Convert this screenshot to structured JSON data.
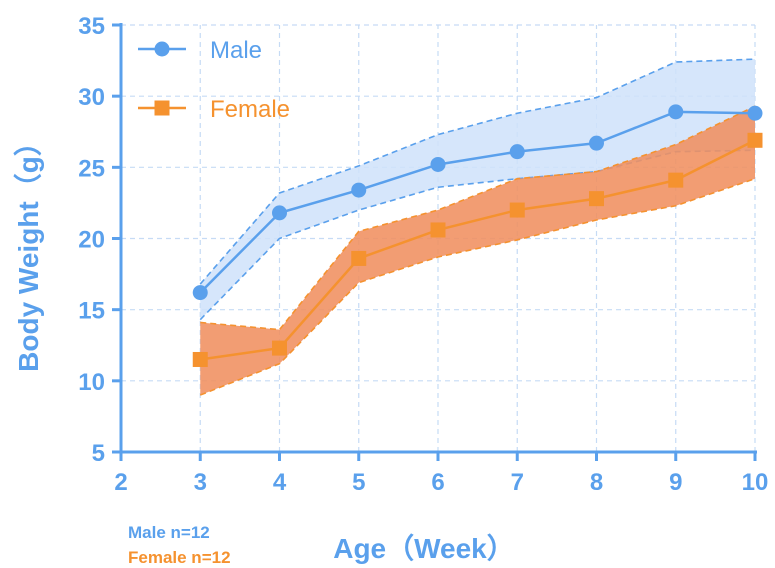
{
  "chart_data": {
    "type": "line",
    "xlabel": "Age（Week）",
    "ylabel": "Body Weight（g）",
    "xlim": [
      2,
      10
    ],
    "ylim": [
      5,
      35
    ],
    "xticks": [
      2,
      3,
      4,
      5,
      6,
      7,
      8,
      9,
      10
    ],
    "yticks": [
      5,
      10,
      15,
      20,
      25,
      30,
      35
    ],
    "grid": true,
    "legend_position": "top-left",
    "x": [
      3,
      4,
      5,
      6,
      7,
      8,
      9,
      10
    ],
    "series": [
      {
        "name": "Male",
        "marker": "circle",
        "color": "#5aa0ec",
        "band_color": "#cfe2fa",
        "values": [
          16.2,
          21.8,
          23.4,
          25.2,
          26.1,
          26.7,
          28.9,
          28.8
        ],
        "upper": [
          16.8,
          23.2,
          25.1,
          27.3,
          28.8,
          29.9,
          32.4,
          32.6
        ],
        "lower": [
          14.3,
          20.0,
          22.0,
          23.6,
          24.2,
          24.7,
          26.1,
          26.2
        ]
      },
      {
        "name": "Female",
        "marker": "square",
        "color": "#f5922f",
        "band_color": "#f09060",
        "values": [
          11.5,
          12.3,
          18.6,
          20.6,
          22.0,
          22.8,
          24.1,
          26.9
        ],
        "upper": [
          14.1,
          13.6,
          20.5,
          22.0,
          24.2,
          24.7,
          26.6,
          29.3
        ],
        "lower": [
          9.0,
          11.2,
          16.9,
          18.7,
          19.9,
          21.3,
          22.3,
          24.2
        ]
      }
    ]
  },
  "notes": {
    "male": "Male n=12",
    "female": "Female n=12"
  }
}
